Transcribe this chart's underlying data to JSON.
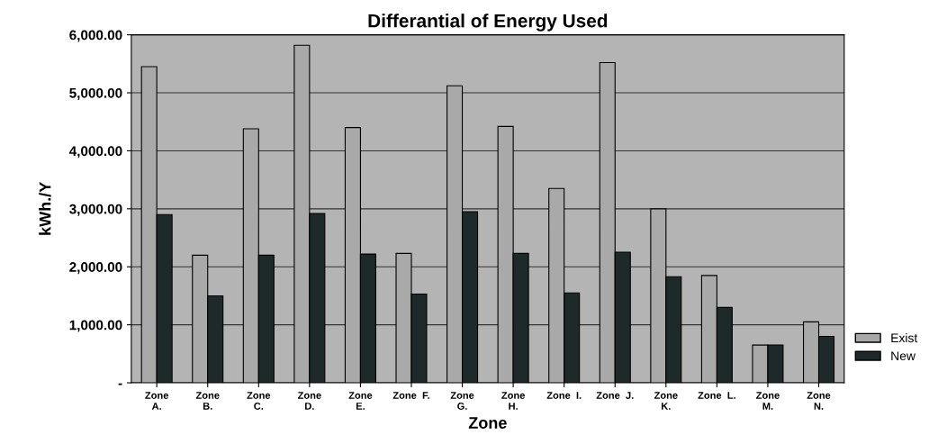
{
  "chart_data": {
    "type": "bar",
    "title": "Differantial of Energy Used",
    "xlabel": "Zone",
    "ylabel": "kWh./Y",
    "categories": [
      "Zone\nA.",
      "Zone\nB.",
      "Zone\nC.",
      "Zone\nD.",
      "Zone\nE.",
      "Zone  F.",
      "Zone\nG.",
      "Zone\nH.",
      "Zone  I.",
      "Zone  J.",
      "Zone\nK.",
      "Zone  L.",
      "Zone\nM.",
      "Zone\nN."
    ],
    "series": [
      {
        "name": "Exist",
        "color": "#a9a9a9",
        "values": [
          5450,
          2200,
          4380,
          5820,
          4400,
          2230,
          5120,
          4420,
          3350,
          5520,
          3000,
          1850,
          650,
          1050
        ]
      },
      {
        "name": "New",
        "color": "#1e2a2a",
        "values": [
          2900,
          1500,
          2200,
          2920,
          2220,
          1530,
          2950,
          2230,
          1550,
          2250,
          1830,
          1300,
          650,
          800
        ]
      }
    ],
    "ylim": [
      0,
      6000
    ],
    "yticks": [
      {
        "value": 0,
        "label": "-"
      },
      {
        "value": 1000,
        "label": "1,000.00"
      },
      {
        "value": 2000,
        "label": "2,000.00"
      },
      {
        "value": 3000,
        "label": "3,000.00"
      },
      {
        "value": 4000,
        "label": "4,000.00"
      },
      {
        "value": 5000,
        "label": "5,000.00"
      },
      {
        "value": 6000,
        "label": "6,000.00"
      }
    ],
    "grid": "y",
    "legend": "right"
  }
}
